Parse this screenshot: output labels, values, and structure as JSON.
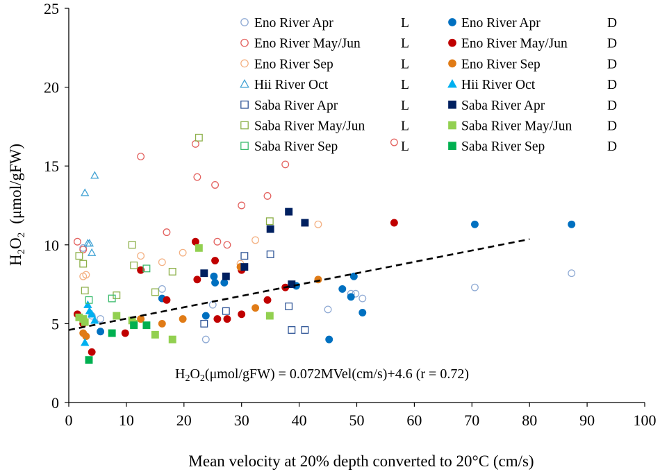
{
  "chart_data": {
    "type": "scatter",
    "title": "",
    "xlabel": "Mean velocity at 20% depth  converted to 20°C (cm/s)",
    "ylabel_main": "H",
    "ylabel_sub": "2",
    "ylabel_main2": "O",
    "ylabel_sub2": "2",
    "ylabel_unit": "(μmol/gFW)",
    "xlim": [
      0,
      100
    ],
    "ylim": [
      0,
      25
    ],
    "x_ticks": [
      "0",
      "10",
      "20",
      "30",
      "40",
      "50",
      "60",
      "70",
      "80",
      "90",
      "100"
    ],
    "y_ticks": [
      "0",
      "5",
      "10",
      "15",
      "20",
      "25"
    ],
    "grid": false,
    "legend_position": "top-right",
    "regression": {
      "slope": 0.072,
      "intercept": 4.6,
      "x_range": [
        0,
        80
      ],
      "style": "dashed",
      "label_pre": "H",
      "label_sub1": "2",
      "label_mid": "O",
      "label_sub2": "2",
      "label_post": "(μmol/gFW) = 0.072MVel(cm/s)+4.6 (r = 0.72)"
    },
    "series": [
      {
        "name": "Eno River Apr",
        "flag": "L",
        "marker": "circle",
        "filled": false,
        "color": "#8faad4",
        "points": [
          [
            2.5,
            9.8
          ],
          [
            4,
            5.5
          ],
          [
            5.5,
            5.3
          ],
          [
            16.2,
            7.2
          ],
          [
            23.8,
            4.0
          ],
          [
            25,
            6.2
          ],
          [
            45,
            5.9
          ],
          [
            49,
            6.9
          ],
          [
            49.8,
            6.9
          ],
          [
            51,
            6.6
          ],
          [
            70.5,
            7.3
          ],
          [
            87.3,
            8.2
          ]
        ]
      },
      {
        "name": "Eno River Apr",
        "flag": "D",
        "marker": "circle",
        "filled": true,
        "color": "#0070c0",
        "points": [
          [
            5.5,
            4.5
          ],
          [
            16.2,
            6.6
          ],
          [
            23.8,
            5.5
          ],
          [
            25.2,
            8.0
          ],
          [
            25.4,
            7.6
          ],
          [
            27,
            7.6
          ],
          [
            39.5,
            7.4
          ],
          [
            45.2,
            4.0
          ],
          [
            47.5,
            7.2
          ],
          [
            49,
            6.7
          ],
          [
            49.5,
            8.0
          ],
          [
            51,
            5.7
          ],
          [
            70.5,
            11.3
          ],
          [
            87.3,
            11.3
          ]
        ]
      },
      {
        "name": "Eno River May/Jun",
        "flag": "L",
        "marker": "circle",
        "filled": false,
        "color": "#e3625f",
        "points": [
          [
            1.5,
            10.2
          ],
          [
            2.5,
            9.7
          ],
          [
            12.5,
            15.6
          ],
          [
            17,
            10.8
          ],
          [
            22,
            16.4
          ],
          [
            22.3,
            14.3
          ],
          [
            25.4,
            13.8
          ],
          [
            25.8,
            10.2
          ],
          [
            27.5,
            10.0
          ],
          [
            30,
            12.5
          ],
          [
            34.5,
            13.1
          ],
          [
            37.6,
            15.1
          ],
          [
            56.5,
            16.5
          ]
        ]
      },
      {
        "name": "Eno River May/Jun",
        "flag": "D",
        "marker": "circle",
        "filled": true,
        "color": "#c00000",
        "points": [
          [
            1.5,
            5.6
          ],
          [
            2.5,
            5.0
          ],
          [
            4,
            3.2
          ],
          [
            9.8,
            4.4
          ],
          [
            12.5,
            8.4
          ],
          [
            17,
            6.5
          ],
          [
            22,
            10.2
          ],
          [
            22.3,
            7.8
          ],
          [
            25.4,
            9.0
          ],
          [
            25.8,
            5.3
          ],
          [
            27.5,
            5.3
          ],
          [
            30,
            5.6
          ],
          [
            30,
            8.4
          ],
          [
            34.5,
            6.5
          ],
          [
            37.6,
            7.3
          ],
          [
            56.5,
            11.4
          ]
        ]
      },
      {
        "name": "Eno River Sep",
        "flag": "L",
        "marker": "circle",
        "filled": false,
        "color": "#f4b183",
        "points": [
          [
            2.5,
            8.0
          ],
          [
            3,
            8.1
          ],
          [
            12.5,
            9.3
          ],
          [
            16.2,
            8.9
          ],
          [
            19.8,
            9.5
          ],
          [
            29.8,
            8.8
          ],
          [
            32.4,
            10.3
          ],
          [
            43.3,
            11.3
          ]
        ]
      },
      {
        "name": "Eno River Sep",
        "flag": "D",
        "marker": "circle",
        "filled": true,
        "color": "#e07b16",
        "points": [
          [
            2.5,
            4.4
          ],
          [
            3,
            4.2
          ],
          [
            12.5,
            5.3
          ],
          [
            16.2,
            5.0
          ],
          [
            19.8,
            5.3
          ],
          [
            29.8,
            8.6
          ],
          [
            32.4,
            6.0
          ],
          [
            43.3,
            7.8
          ]
        ]
      },
      {
        "name": "Hii River  Oct",
        "flag": "L",
        "marker": "triangle",
        "filled": false,
        "color": "#41a2d4",
        "points": [
          [
            2.8,
            13.3
          ],
          [
            3.3,
            10.1
          ],
          [
            3.6,
            10.1
          ],
          [
            4,
            9.5
          ],
          [
            4.5,
            14.4
          ]
        ]
      },
      {
        "name": "Hii River  Oct",
        "flag": "D",
        "marker": "triangle",
        "filled": true,
        "color": "#00b0f0",
        "points": [
          [
            2.8,
            3.8
          ],
          [
            3.3,
            6.2
          ],
          [
            3.6,
            5.8
          ],
          [
            4,
            5.6
          ],
          [
            4.5,
            5.2
          ]
        ]
      },
      {
        "name": "Saba River Apr",
        "flag": "L",
        "marker": "square",
        "filled": false,
        "color": "#2f5597",
        "points": [
          [
            23.5,
            5.0
          ],
          [
            27.3,
            5.8
          ],
          [
            30.5,
            9.3
          ],
          [
            35,
            9.4
          ],
          [
            38.2,
            6.1
          ],
          [
            38.7,
            4.6
          ],
          [
            41,
            4.6
          ]
        ]
      },
      {
        "name": "Saba River Apr",
        "flag": "D",
        "marker": "square",
        "filled": true,
        "color": "#002060",
        "points": [
          [
            23.5,
            8.2
          ],
          [
            27.3,
            8.0
          ],
          [
            30.5,
            8.6
          ],
          [
            35,
            11.0
          ],
          [
            38.2,
            12.1
          ],
          [
            38.7,
            7.5
          ],
          [
            41,
            11.4
          ]
        ]
      },
      {
        "name": "Saba River May/Jun",
        "flag": "L",
        "marker": "square",
        "filled": false,
        "color": "#8db04a",
        "points": [
          [
            1.8,
            9.3
          ],
          [
            2.5,
            8.8
          ],
          [
            2.8,
            7.1
          ],
          [
            8.3,
            6.8
          ],
          [
            11,
            10.0
          ],
          [
            11.3,
            8.7
          ],
          [
            15,
            7.0
          ],
          [
            18,
            8.3
          ],
          [
            22.6,
            16.8
          ],
          [
            34.9,
            11.5
          ]
        ]
      },
      {
        "name": "Saba River May/Jun",
        "flag": "D",
        "marker": "square",
        "filled": true,
        "color": "#92d050",
        "points": [
          [
            1.8,
            5.4
          ],
          [
            2.5,
            5.3
          ],
          [
            2.8,
            5.1
          ],
          [
            8.3,
            5.5
          ],
          [
            11,
            5.2
          ],
          [
            11.3,
            5.0
          ],
          [
            15,
            4.3
          ],
          [
            18,
            4.0
          ],
          [
            22.6,
            9.8
          ],
          [
            34.9,
            5.5
          ]
        ]
      },
      {
        "name": "Saba River Sep",
        "flag": "L",
        "marker": "square",
        "filled": false,
        "color": "#3cbc6e",
        "points": [
          [
            3.5,
            6.5
          ],
          [
            7.5,
            6.6
          ],
          [
            13.5,
            8.5
          ]
        ]
      },
      {
        "name": "Saba River Sep",
        "flag": "D",
        "marker": "square",
        "filled": true,
        "color": "#00b050",
        "points": [
          [
            3.5,
            2.7
          ],
          [
            7.5,
            4.4
          ],
          [
            11.3,
            4.9
          ],
          [
            13.5,
            4.9
          ]
        ]
      }
    ]
  }
}
